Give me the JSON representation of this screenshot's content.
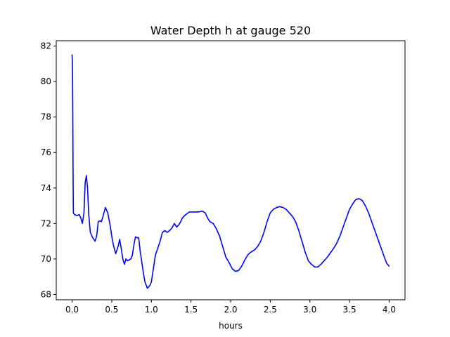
{
  "chart_data": {
    "type": "line",
    "title": "Water Depth h at gauge 520",
    "xlabel": "hours",
    "ylabel": "",
    "xlim": [
      -0.2,
      4.2
    ],
    "ylim": [
      67.7,
      82.3
    ],
    "xticks": [
      0.0,
      0.5,
      1.0,
      1.5,
      2.0,
      2.5,
      3.0,
      3.5,
      4.0
    ],
    "xtick_labels": [
      "0.0",
      "0.5",
      "1.0",
      "1.5",
      "2.0",
      "2.5",
      "3.0",
      "3.5",
      "4.0"
    ],
    "yticks": [
      68,
      70,
      72,
      74,
      76,
      78,
      80,
      82
    ],
    "ytick_labels": [
      "68",
      "70",
      "72",
      "74",
      "76",
      "78",
      "80",
      "82"
    ],
    "grid": false,
    "series": [
      {
        "color": "#0000ff",
        "x": [
          0.0,
          0.003,
          0.006,
          0.009,
          0.012,
          0.016,
          0.03,
          0.06,
          0.09,
          0.11,
          0.13,
          0.15,
          0.165,
          0.18,
          0.195,
          0.21,
          0.23,
          0.26,
          0.29,
          0.31,
          0.33,
          0.35,
          0.37,
          0.39,
          0.42,
          0.45,
          0.48,
          0.5,
          0.52,
          0.55,
          0.58,
          0.6,
          0.62,
          0.64,
          0.66,
          0.68,
          0.7,
          0.72,
          0.74,
          0.76,
          0.78,
          0.8,
          0.82,
          0.84,
          0.86,
          0.88,
          0.9,
          0.92,
          0.95,
          0.98,
          1.0,
          1.02,
          1.05,
          1.08,
          1.11,
          1.14,
          1.17,
          1.2,
          1.23,
          1.26,
          1.29,
          1.32,
          1.35,
          1.37,
          1.39,
          1.42,
          1.45,
          1.48,
          1.52,
          1.56,
          1.6,
          1.64,
          1.68,
          1.71,
          1.74,
          1.78,
          1.82,
          1.86,
          1.9,
          1.94,
          1.98,
          2.02,
          2.06,
          2.1,
          2.14,
          2.18,
          2.22,
          2.26,
          2.3,
          2.34,
          2.38,
          2.42,
          2.46,
          2.5,
          2.54,
          2.58,
          2.62,
          2.66,
          2.7,
          2.74,
          2.78,
          2.82,
          2.86,
          2.9,
          2.94,
          2.98,
          3.02,
          3.06,
          3.1,
          3.14,
          3.18,
          3.22,
          3.26,
          3.3,
          3.34,
          3.38,
          3.42,
          3.46,
          3.5,
          3.54,
          3.58,
          3.62,
          3.66,
          3.7,
          3.74,
          3.78,
          3.82,
          3.86,
          3.9,
          3.94,
          3.97,
          4.0
        ],
        "y": [
          81.5,
          81.1,
          80.4,
          78.0,
          75.0,
          72.6,
          72.5,
          72.45,
          72.5,
          72.3,
          72.0,
          72.6,
          74.3,
          74.7,
          74.0,
          72.5,
          71.5,
          71.2,
          71.0,
          71.3,
          72.1,
          72.15,
          72.1,
          72.4,
          72.9,
          72.6,
          71.9,
          71.3,
          70.8,
          70.3,
          70.7,
          71.1,
          70.6,
          70.0,
          69.7,
          70.0,
          69.9,
          69.95,
          70.0,
          70.2,
          70.8,
          71.25,
          71.2,
          71.2,
          70.4,
          69.8,
          69.2,
          68.7,
          68.35,
          68.5,
          68.7,
          69.3,
          70.2,
          70.6,
          71.0,
          71.5,
          71.6,
          71.5,
          71.6,
          71.75,
          72.0,
          71.8,
          71.95,
          72.1,
          72.3,
          72.45,
          72.55,
          72.65,
          72.65,
          72.65,
          72.65,
          72.7,
          72.6,
          72.3,
          72.1,
          72.0,
          71.7,
          71.3,
          70.7,
          70.1,
          69.8,
          69.45,
          69.3,
          69.35,
          69.6,
          69.95,
          70.25,
          70.4,
          70.5,
          70.7,
          71.0,
          71.5,
          72.1,
          72.6,
          72.8,
          72.9,
          72.95,
          72.9,
          72.8,
          72.6,
          72.4,
          72.1,
          71.6,
          71.0,
          70.4,
          69.9,
          69.7,
          69.55,
          69.55,
          69.7,
          69.9,
          70.1,
          70.35,
          70.6,
          70.9,
          71.3,
          71.8,
          72.3,
          72.8,
          73.1,
          73.35,
          73.4,
          73.3,
          73.0,
          72.6,
          72.1,
          71.6,
          71.1,
          70.6,
          70.1,
          69.75,
          69.6
        ]
      }
    ]
  }
}
